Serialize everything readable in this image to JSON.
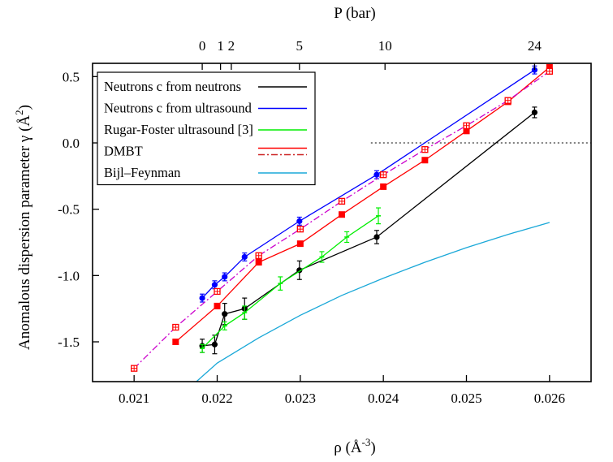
{
  "chart_data": {
    "type": "line",
    "ylabel": "Anomalous dispersion parameter γ (Å",
    "ylabel_sup": "2",
    "ylabel_end": ")",
    "xlabel": "ρ  (Å",
    "xlabel_sup": "-3",
    "xlabel_end": ")",
    "top_axis_label": "P   (bar)",
    "xlim": [
      0.0205,
      0.0265
    ],
    "ylim": [
      -1.8,
      0.6
    ],
    "x_ticks": [
      0.021,
      0.022,
      0.023,
      0.024,
      0.025,
      0.026
    ],
    "x_tick_labels": [
      "0.021",
      "0.022",
      "0.023",
      "0.024",
      "0.025",
      "0.026"
    ],
    "y_ticks": [
      0.5,
      0.0,
      -0.5,
      -1.0,
      -1.5
    ],
    "y_tick_labels": [
      "0.5",
      "0.0",
      "-0.5",
      "-1.0",
      "-1.5"
    ],
    "top_ticks": [
      {
        "rho": 0.02182,
        "label": "0"
      },
      {
        "rho": 0.02204,
        "label": "1"
      },
      {
        "rho": 0.02217,
        "label": "2"
      },
      {
        "rho": 0.02299,
        "label": "5"
      },
      {
        "rho": 0.02402,
        "label": "10"
      },
      {
        "rho": 0.02582,
        "label": "24"
      }
    ],
    "reference_line": {
      "y": 0.0,
      "x_from": 0.02385,
      "style": "dotted",
      "color": "#000000"
    },
    "legend_position": "top-left",
    "series": [
      {
        "name": "Neutrons  c from neutrons",
        "color": "#000000",
        "marker": "circle",
        "x": [
          0.02182,
          0.02197,
          0.02209,
          0.02233,
          0.02299,
          0.02392,
          0.02582
        ],
        "y": [
          -1.53,
          -1.52,
          -1.29,
          -1.25,
          -0.96,
          -0.71,
          0.23
        ],
        "err": [
          0.05,
          0.07,
          0.08,
          0.08,
          0.07,
          0.05,
          0.04
        ]
      },
      {
        "name": "Neutrons  c from ultrasound",
        "color": "#0000ff",
        "marker": "circle",
        "x": [
          0.02182,
          0.02197,
          0.02209,
          0.02233,
          0.02299,
          0.02392,
          0.02582
        ],
        "y": [
          -1.17,
          -1.07,
          -1.01,
          -0.86,
          -0.59,
          -0.24,
          0.55
        ],
        "err": [
          0.03,
          0.03,
          0.03,
          0.03,
          0.03,
          0.03,
          0.03
        ]
      },
      {
        "name": "Rugar-Foster ultrasound [3]",
        "color": "#00ee00",
        "marker": "bar",
        "x": [
          0.02182,
          0.02209,
          0.02233,
          0.02276,
          0.02326,
          0.02356,
          0.02394
        ],
        "y": [
          -1.55,
          -1.38,
          -1.28,
          -1.06,
          -0.86,
          -0.71,
          -0.55
        ],
        "err": [
          0.03,
          0.03,
          0.05,
          0.05,
          0.04,
          0.04,
          0.06
        ]
      },
      {
        "name": "DMBT",
        "color": "#ff0000",
        "marker": "square",
        "x": [
          0.0215,
          0.022,
          0.0225,
          0.023,
          0.0235,
          0.024,
          0.0245,
          0.025,
          0.0255,
          0.026
        ],
        "y": [
          -1.5,
          -1.23,
          -0.9,
          -0.76,
          -0.54,
          -0.33,
          -0.13,
          0.09,
          0.31,
          0.57
        ]
      },
      {
        "name": "",
        "color": "#cc00cc",
        "marker": "open-square",
        "marker_color": "#ff0000",
        "dashed": true,
        "x": [
          0.021,
          0.0215,
          0.022,
          0.0225,
          0.023,
          0.0235,
          0.024,
          0.0245,
          0.025,
          0.0255,
          0.026
        ],
        "y": [
          -1.7,
          -1.39,
          -1.12,
          -0.85,
          -0.65,
          -0.44,
          -0.24,
          -0.05,
          0.13,
          0.32,
          0.54
        ]
      },
      {
        "name": "Bijl–Feynman",
        "color": "#1aa8d8",
        "marker": "none",
        "x": [
          0.02175,
          0.022,
          0.0225,
          0.023,
          0.0235,
          0.024,
          0.0245,
          0.025,
          0.0255,
          0.026
        ],
        "y": [
          -1.8,
          -1.66,
          -1.47,
          -1.3,
          -1.15,
          -1.02,
          -0.9,
          -0.79,
          -0.69,
          -0.6
        ]
      }
    ],
    "legend": [
      {
        "label": "Neutrons  c from neutrons",
        "color": "#000000",
        "style": "solid"
      },
      {
        "label": "Neutrons  c from ultrasound",
        "color": "#0000ff",
        "style": "solid"
      },
      {
        "label": "Rugar-Foster ultrasound [3]",
        "color": "#00ee00",
        "style": "solid"
      },
      {
        "label": "DMBT",
        "color": "#ff0000",
        "style": "solid",
        "second_color": "#cc2222",
        "second_style": "dashdot"
      },
      {
        "label": "Bijl–Feynman",
        "color": "#1aa8d8",
        "style": "solid"
      }
    ]
  }
}
